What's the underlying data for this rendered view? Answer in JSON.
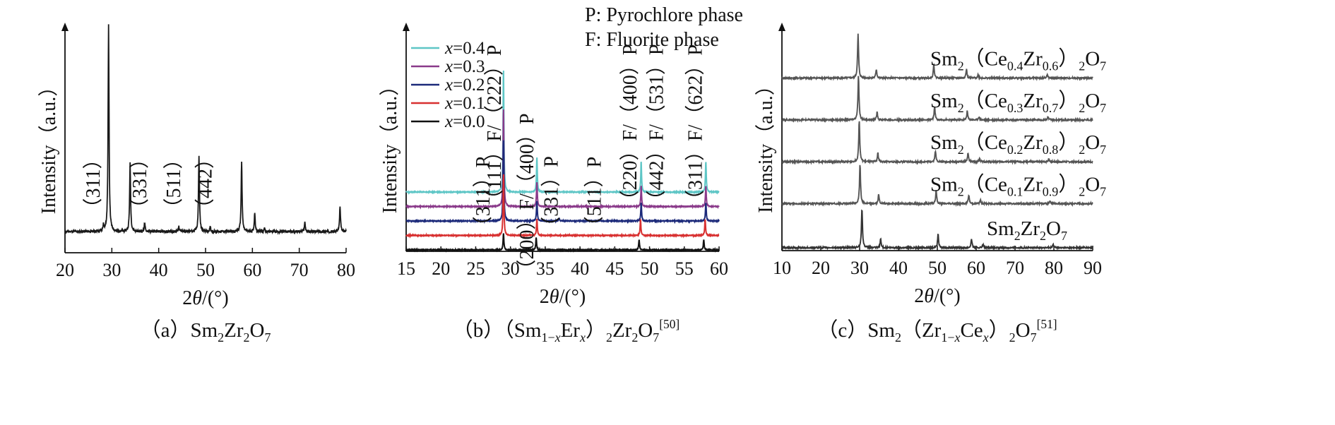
{
  "chart_data": [
    {
      "id": "a",
      "type": "line",
      "caption": {
        "prefix": "（a）",
        "formula": [
          {
            "t": "Sm"
          },
          {
            "t": "2",
            "sub": true
          },
          {
            "t": "Zr"
          },
          {
            "t": "2",
            "sub": true
          },
          {
            "t": "O"
          },
          {
            "t": "7",
            "sub": true
          }
        ]
      },
      "xlabel": "2θ/(°)",
      "ylabel": "Intensity（a.u.）",
      "xlim": [
        20,
        80
      ],
      "xticks": [
        20,
        30,
        40,
        50,
        60,
        70,
        80
      ],
      "ylim": [
        0,
        100
      ],
      "grid": false,
      "peak_labels": [
        {
          "label": "（311）",
          "x": 27.4
        },
        {
          "label": "（331）",
          "x": 37.3
        },
        {
          "label": "（511）",
          "x": 44.6
        },
        {
          "label": "（442）",
          "x": 51.3
        }
      ],
      "series": [
        {
          "color": "#1a1a1a",
          "baseline": 10,
          "noise": 0.6,
          "peaks": [
            [
              28.2,
              3
            ],
            [
              29.3,
              100
            ],
            [
              33.9,
              33
            ],
            [
              37.0,
              4
            ],
            [
              44.3,
              2.5
            ],
            [
              48.6,
              37
            ],
            [
              51.0,
              2
            ],
            [
              57.7,
              34
            ],
            [
              60.5,
              9
            ],
            [
              62.6,
              1.5
            ],
            [
              71.2,
              4.5
            ],
            [
              78.7,
              12
            ]
          ]
        }
      ]
    },
    {
      "id": "b",
      "type": "line",
      "caption": {
        "prefix": "（b）（",
        "formula": [
          {
            "t": "Sm"
          },
          {
            "t": "1−",
            "sub": true
          },
          {
            "t": "x",
            "sub": true,
            "it": true
          },
          {
            "t": "Er"
          },
          {
            "t": "x",
            "sub": true,
            "it": true
          },
          {
            "t": "）"
          },
          {
            "t": "2",
            "sub": true
          },
          {
            "t": "Zr"
          },
          {
            "t": "2",
            "sub": true
          },
          {
            "t": "O"
          },
          {
            "t": "7",
            "sub": true
          },
          {
            "t": "[50]",
            "sup": true
          }
        ]
      },
      "xlabel": "2θ/(°)",
      "ylabel": "Intensity（a.u.）",
      "xlim": [
        15,
        60
      ],
      "xticks": [
        15,
        20,
        25,
        30,
        35,
        40,
        45,
        50,
        55,
        60
      ],
      "ylim": [
        0,
        100
      ],
      "grid": false,
      "annotations": [
        "P: Pyrochlore phase",
        "F: Fluorite phase"
      ],
      "peak_labels": [
        {
          "label": "（311）P",
          "x": 27.0
        },
        {
          "label": "（111）F/（222）P",
          "x": 28.6
        },
        {
          "label": "（200）F/（400）P",
          "x": 33.3
        },
        {
          "label": "（331）P",
          "x": 36.8
        },
        {
          "label": "（511）P",
          "x": 43.0
        },
        {
          "label": "（220）F/（400）P",
          "x": 48.1
        },
        {
          "label": "（442）F/（531）P",
          "x": 51.9
        },
        {
          "label": "（311）F/（622）P",
          "x": 57.5
        }
      ],
      "legend_position": "top-left",
      "series": [
        {
          "name": "x=0.4",
          "color": "#5ec6c6",
          "baseline": 30,
          "noise": 0.2,
          "peaks": [
            [
              29.0,
              60
            ],
            [
              33.8,
              17
            ],
            [
              48.8,
              15
            ],
            [
              58.1,
              15
            ]
          ]
        },
        {
          "name": "x=0.3",
          "color": "#8a3a8a",
          "baseline": 23,
          "noise": 0.2,
          "peaks": [
            [
              29.0,
              48
            ],
            [
              33.8,
              12
            ],
            [
              48.8,
              10
            ],
            [
              58.1,
              10
            ]
          ]
        },
        {
          "name": "x=0.2",
          "color": "#1c2a7a",
          "baseline": 16,
          "noise": 0.2,
          "peaks": [
            [
              29.0,
              40
            ],
            [
              33.8,
              10
            ],
            [
              37.0,
              1.5
            ],
            [
              48.8,
              9
            ],
            [
              58.1,
              9
            ]
          ]
        },
        {
          "name": "x=0.1",
          "color": "#d83030",
          "baseline": 9,
          "noise": 0.2,
          "peaks": [
            [
              29.0,
              30
            ],
            [
              33.8,
              8
            ],
            [
              48.7,
              8
            ],
            [
              58.0,
              8
            ]
          ]
        },
        {
          "name": "x=0.0",
          "color": "#111111",
          "baseline": 2,
          "noise": 0.2,
          "peaks": [
            [
              29.0,
              8
            ],
            [
              33.7,
              6
            ],
            [
              48.5,
              5
            ],
            [
              57.8,
              5
            ]
          ]
        }
      ]
    },
    {
      "id": "c",
      "type": "line",
      "caption": {
        "prefix": "（c）",
        "formula": [
          {
            "t": "Sm"
          },
          {
            "t": "2",
            "sub": true
          },
          {
            "t": "（"
          },
          {
            "t": "Zr"
          },
          {
            "t": "1−",
            "sub": true
          },
          {
            "t": "x",
            "sub": true,
            "it": true
          },
          {
            "t": "Ce"
          },
          {
            "t": "x",
            "sub": true,
            "it": true
          },
          {
            "t": "）"
          },
          {
            "t": "2",
            "sub": true
          },
          {
            "t": "O"
          },
          {
            "t": "7",
            "sub": true
          },
          {
            "t": "[51]",
            "sup": true
          }
        ]
      },
      "xlabel": "2θ/(°)",
      "ylabel": "Intensity（a.u.）",
      "xlim": [
        10,
        90
      ],
      "xticks": [
        10,
        20,
        30,
        40,
        50,
        60,
        70,
        80,
        90
      ],
      "ylim": [
        0,
        100
      ],
      "grid": false,
      "series": [
        {
          "formula": [
            {
              "t": "Sm"
            },
            {
              "t": "2",
              "sub": true
            },
            {
              "t": "（"
            },
            {
              "t": "Ce"
            },
            {
              "t": "0.4",
              "sub": true
            },
            {
              "t": "Zr"
            },
            {
              "t": "0.6",
              "sub": true
            },
            {
              "t": "）"
            },
            {
              "t": "2",
              "sub": true
            },
            {
              "t": "O"
            },
            {
              "t": "7",
              "sub": true
            }
          ],
          "color": "#555555",
          "baseline": 80,
          "noise": 0.35,
          "peaks": [
            [
              29.6,
              20
            ],
            [
              34.3,
              4
            ],
            [
              49.1,
              6
            ],
            [
              57.5,
              4
            ],
            [
              60.5,
              1.5
            ],
            [
              78.3,
              1.5
            ]
          ]
        },
        {
          "formula": [
            {
              "t": "Sm"
            },
            {
              "t": "2",
              "sub": true
            },
            {
              "t": "（"
            },
            {
              "t": "Ce"
            },
            {
              "t": "0.3",
              "sub": true
            },
            {
              "t": "Zr"
            },
            {
              "t": "0.7",
              "sub": true
            },
            {
              "t": "）"
            },
            {
              "t": "2",
              "sub": true
            },
            {
              "t": "O"
            },
            {
              "t": "7",
              "sub": true
            }
          ],
          "color": "#555555",
          "baseline": 61,
          "noise": 0.35,
          "peaks": [
            [
              29.7,
              20
            ],
            [
              34.5,
              3.5
            ],
            [
              49.3,
              6
            ],
            [
              57.7,
              4
            ],
            [
              60.7,
              1.5
            ],
            [
              78.5,
              1.5
            ]
          ]
        },
        {
          "formula": [
            {
              "t": "Sm"
            },
            {
              "t": "2",
              "sub": true
            },
            {
              "t": "（"
            },
            {
              "t": "Ce"
            },
            {
              "t": "0.2",
              "sub": true
            },
            {
              "t": "Zr"
            },
            {
              "t": "0.8",
              "sub": true
            },
            {
              "t": "）"
            },
            {
              "t": "2",
              "sub": true
            },
            {
              "t": "O"
            },
            {
              "t": "7",
              "sub": true
            }
          ],
          "color": "#555555",
          "baseline": 42,
          "noise": 0.35,
          "peaks": [
            [
              29.9,
              19
            ],
            [
              34.7,
              4
            ],
            [
              49.5,
              5
            ],
            [
              57.9,
              4
            ],
            [
              60.9,
              1.5
            ],
            [
              78.7,
              1.5
            ]
          ]
        },
        {
          "formula": [
            {
              "t": "Sm"
            },
            {
              "t": "2",
              "sub": true
            },
            {
              "t": "（"
            },
            {
              "t": "Ce"
            },
            {
              "t": "0.1",
              "sub": true
            },
            {
              "t": "Zr"
            },
            {
              "t": "0.9",
              "sub": true
            },
            {
              "t": "）"
            },
            {
              "t": "2",
              "sub": true
            },
            {
              "t": "O"
            },
            {
              "t": "7",
              "sub": true
            }
          ],
          "color": "#555555",
          "baseline": 23,
          "noise": 0.35,
          "peaks": [
            [
              30.1,
              18
            ],
            [
              34.9,
              4
            ],
            [
              49.7,
              6
            ],
            [
              58.1,
              4
            ],
            [
              61.1,
              1.5
            ],
            [
              79.0,
              1.5
            ]
          ]
        },
        {
          "formula": [
            {
              "t": "Sm"
            },
            {
              "t": "2",
              "sub": true
            },
            {
              "t": "Zr"
            },
            {
              "t": "2",
              "sub": true
            },
            {
              "t": "O"
            },
            {
              "t": "7",
              "sub": true
            }
          ],
          "color": "#333333",
          "baseline": 3,
          "noise": 0.35,
          "peaks": [
            [
              30.6,
              18
            ],
            [
              35.4,
              4
            ],
            [
              50.2,
              6
            ],
            [
              58.8,
              4
            ],
            [
              61.8,
              1.5
            ],
            [
              79.8,
              1.5
            ]
          ]
        }
      ]
    }
  ]
}
